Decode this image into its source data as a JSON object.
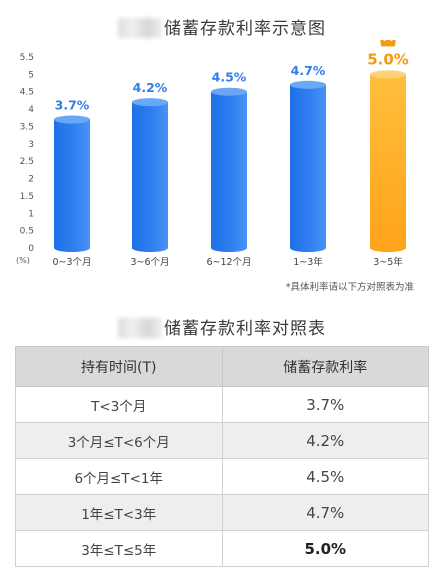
{
  "chart_title": "储蓄存款利率示意图",
  "table_title": "储蓄存款利率对照表",
  "note": "*具体利率请以下方对照表为准",
  "crown_icon": "crown-icon",
  "colors": {
    "bar_blue": "#2f7ff0",
    "bar_orange": "#ffa31a",
    "label_blue": "#2f7ff0",
    "label_orange": "#f59a12"
  },
  "chart_data": {
    "type": "bar",
    "title": "储蓄存款利率示意图",
    "categories": [
      "0~3个月",
      "3~6个月",
      "6~12个月",
      "1~3年",
      "3~5年"
    ],
    "values": [
      3.7,
      4.2,
      4.5,
      4.7,
      5.0
    ],
    "data_labels": [
      "3.7%",
      "4.2%",
      "4.5%",
      "4.7%",
      "5.0%"
    ],
    "highlight_index": 4,
    "yticks": [
      "0",
      "0.5",
      "1",
      "1.5",
      "2",
      "2.5",
      "3",
      "3.5",
      "4",
      "4.5",
      "5",
      "5.5"
    ],
    "ylim": [
      0,
      5.5
    ],
    "yunit": "(%)",
    "grid": false
  },
  "table": {
    "headers": [
      "持有时间(T)",
      "储蓄存款利率"
    ],
    "rows": [
      [
        "T<3个月",
        "3.7%"
      ],
      [
        "3个月≤T<6个月",
        "4.2%"
      ],
      [
        "6个月≤T<1年",
        "4.5%"
      ],
      [
        "1年≤T<3年",
        "4.7%"
      ],
      [
        "3年≤T≤5年",
        "5.0%"
      ]
    ]
  }
}
